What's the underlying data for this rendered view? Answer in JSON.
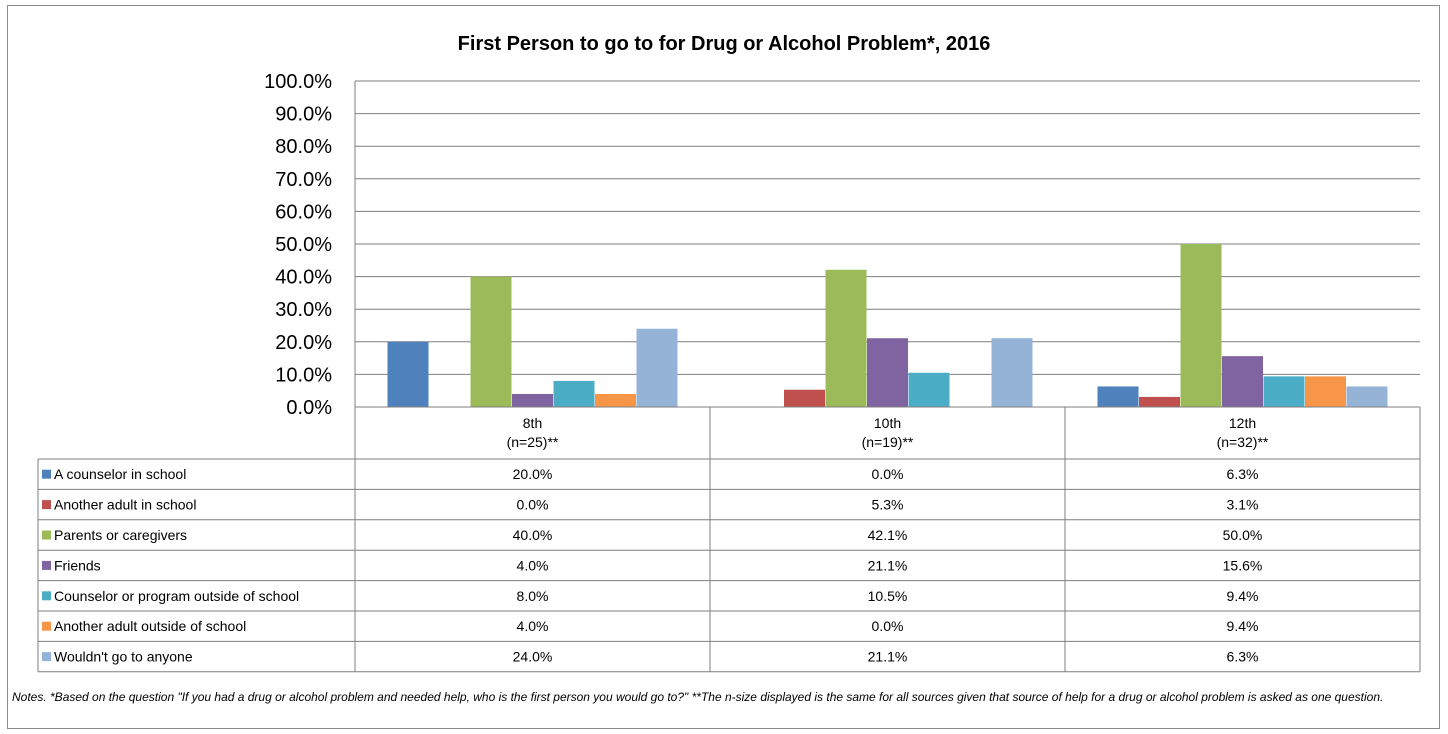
{
  "notes": "Notes. *Based on the question \"If you had a drug or alcohol problem and needed help, who is the first person you would go to?\" **The n-size displayed is the same for all sources given that source of help for a drug or alcohol problem is asked as one question.",
  "chart_data": {
    "type": "bar",
    "title": "First Person to go to for Drug or Alcohol Problem*, 2016",
    "categories": [
      {
        "line1": "8th",
        "line2": "(n=25)**"
      },
      {
        "line1": "10th",
        "line2": "(n=19)**"
      },
      {
        "line1": "12th",
        "line2": "(n=32)**"
      }
    ],
    "ylim": [
      0,
      100
    ],
    "yticks": [
      "0.0%",
      "10.0%",
      "20.0%",
      "30.0%",
      "40.0%",
      "50.0%",
      "60.0%",
      "70.0%",
      "80.0%",
      "90.0%",
      "100.0%"
    ],
    "grid": true,
    "data_table": true,
    "series": [
      {
        "name": "A counselor in school",
        "color": "#4f81bd",
        "values": [
          20.0,
          0.0,
          6.3
        ],
        "labels": [
          "20.0%",
          "0.0%",
          "6.3%"
        ]
      },
      {
        "name": "Another adult in school",
        "color": "#c0504d",
        "values": [
          0.0,
          5.3,
          3.1
        ],
        "labels": [
          "0.0%",
          "5.3%",
          "3.1%"
        ]
      },
      {
        "name": "Parents or caregivers",
        "color": "#9bbb59",
        "values": [
          40.0,
          42.1,
          50.0
        ],
        "labels": [
          "40.0%",
          "42.1%",
          "50.0%"
        ]
      },
      {
        "name": "Friends",
        "color": "#8064a2",
        "values": [
          4.0,
          21.1,
          15.6
        ],
        "labels": [
          "4.0%",
          "21.1%",
          "15.6%"
        ]
      },
      {
        "name": "Counselor or program outside of school",
        "color": "#4bacc6",
        "values": [
          8.0,
          10.5,
          9.4
        ],
        "labels": [
          "8.0%",
          "10.5%",
          "9.4%"
        ]
      },
      {
        "name": "Another adult outside of school",
        "color": "#f79646",
        "values": [
          4.0,
          0.0,
          9.4
        ],
        "labels": [
          "4.0%",
          "0.0%",
          "9.4%"
        ]
      },
      {
        "name": "Wouldn't go to anyone",
        "color": "#95b3d7",
        "values": [
          24.0,
          21.1,
          6.3
        ],
        "labels": [
          "24.0%",
          "21.1%",
          "6.3%"
        ]
      }
    ]
  }
}
